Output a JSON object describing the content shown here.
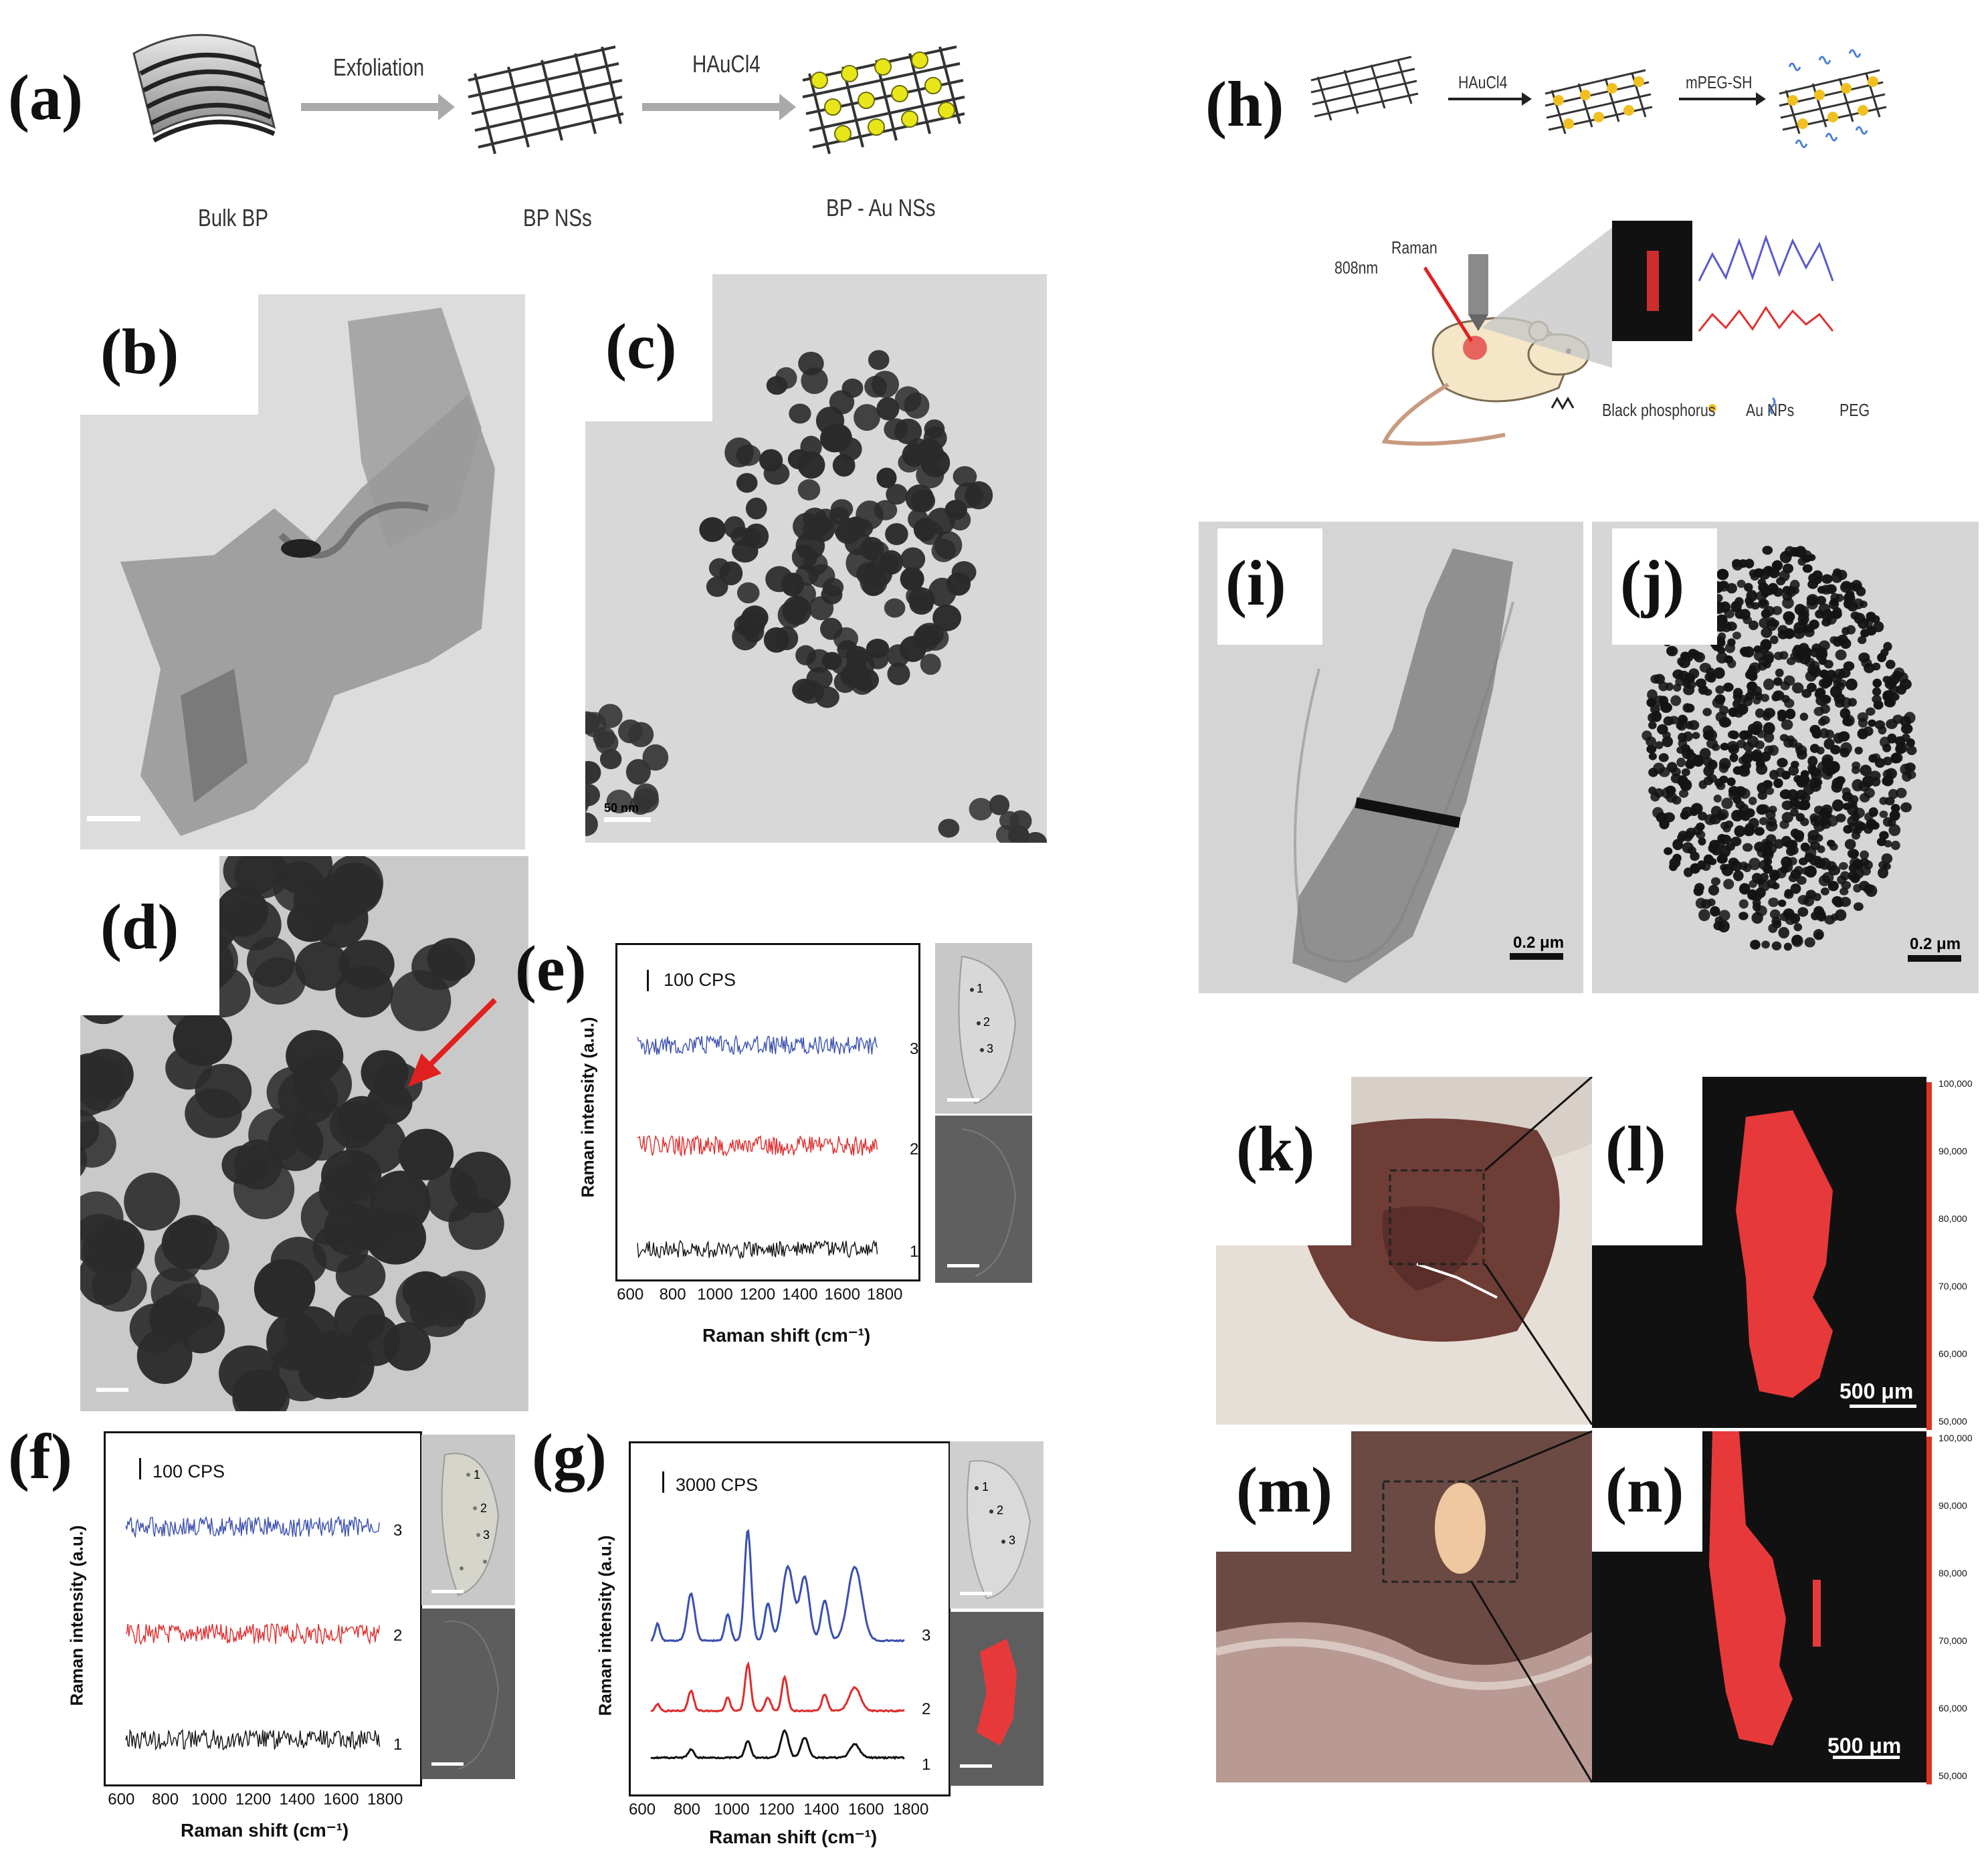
{
  "panel_labels": {
    "a": "(a)",
    "b": "(b)",
    "c": "(c)",
    "d": "(d)",
    "e": "(e)",
    "f": "(f)",
    "g": "(g)",
    "h": "(h)",
    "i": "(i)",
    "j": "(j)",
    "k": "(k)",
    "l": "(l)",
    "m": "(m)",
    "n": "(n)"
  },
  "panel_a": {
    "bulk_label": "Bulk BP",
    "step1": "Exfoliation",
    "nanosheet_label": "BP NSs",
    "step2": "HAuCl4",
    "product_label": "BP - Au NSs"
  },
  "panel_h": {
    "step1": "HAuCl4",
    "step2": "mPEG-SH",
    "laser": "808nm",
    "raman": "Raman",
    "legend_bp": "Black phosphorus",
    "legend_au": "Au NPs",
    "legend_peg": "PEG"
  },
  "tem_scales": {
    "c": "50 nm",
    "i": "0.2 μm",
    "j": "0.2 μm"
  },
  "map_scales": {
    "l": "500 μm",
    "n": "500 μm"
  },
  "colorbar_ticks": [
    "100,000",
    "90,000",
    "80,000",
    "70,000",
    "60,000",
    "50,000"
  ],
  "raman_axes": {
    "xlabel": "Raman shift (cm⁻¹)",
    "ylabel": "Raman intensity (a.u.)",
    "xticks": [
      "600",
      "800",
      "1000",
      "1200",
      "1400",
      "1600",
      "1800"
    ]
  },
  "raman_e": {
    "scale": "100 CPS",
    "trace_labels": [
      "3",
      "2",
      "1"
    ],
    "cell_points": [
      "1",
      "2",
      "3"
    ]
  },
  "raman_f": {
    "scale": "100 CPS",
    "trace_labels": [
      "3",
      "2",
      "1"
    ],
    "cell_points": [
      "1",
      "2",
      "3"
    ]
  },
  "raman_g": {
    "scale": "3000 CPS",
    "trace_labels": [
      "3",
      "2",
      "1"
    ],
    "cell_points": [
      "1",
      "2",
      "3"
    ]
  },
  "colors": {
    "trace3": "#3a4fb0",
    "trace2": "#e02a2a",
    "trace1": "#111111",
    "map_red": "#e8393a",
    "arrow": "#e02020"
  }
}
